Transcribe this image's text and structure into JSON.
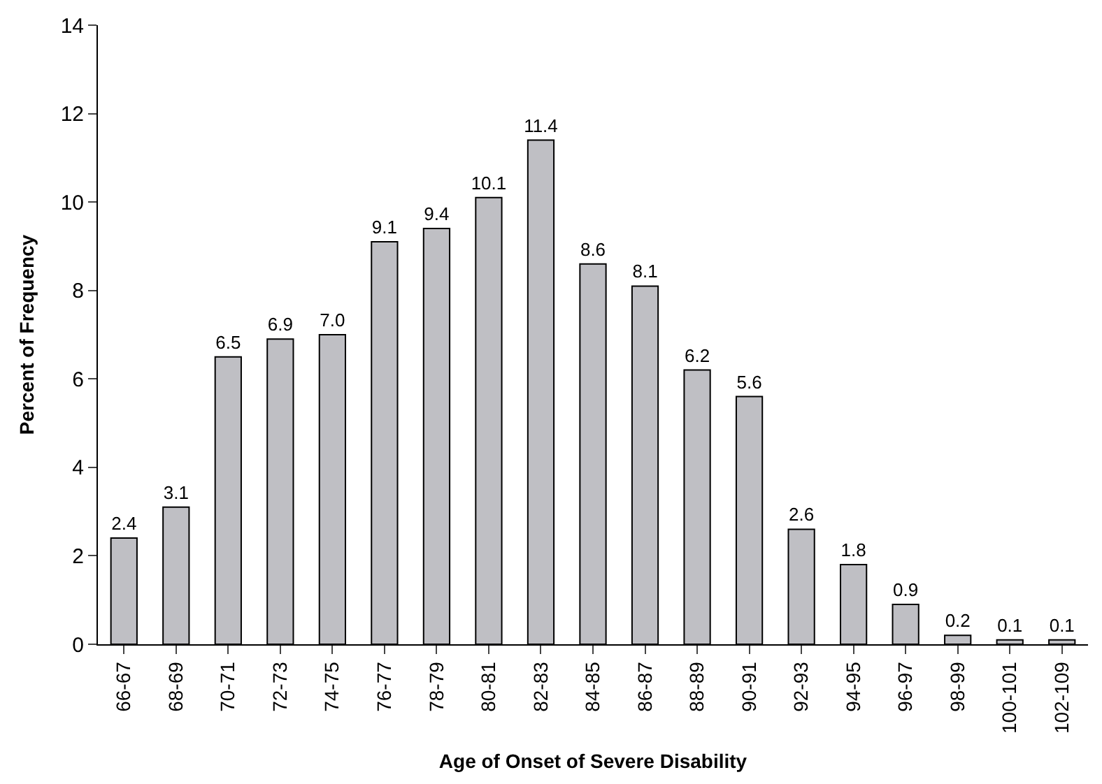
{
  "chart_data": {
    "type": "bar",
    "xlabel": "Age of Onset of Severe Disability",
    "ylabel": "Percent of Frequency",
    "categories": [
      "66-67",
      "68-69",
      "70-71",
      "72-73",
      "74-75",
      "76-77",
      "78-79",
      "80-81",
      "82-83",
      "84-85",
      "86-87",
      "88-89",
      "90-91",
      "92-93",
      "94-95",
      "96-97",
      "98-99",
      "100-101",
      "102-109"
    ],
    "values": [
      2.4,
      3.1,
      6.5,
      6.9,
      7.0,
      9.1,
      9.4,
      10.1,
      11.4,
      8.6,
      8.1,
      6.2,
      5.6,
      2.6,
      1.8,
      0.9,
      0.2,
      0.1,
      0.1
    ],
    "value_labels": [
      "2.4",
      "3.1",
      "6.5",
      "6.9",
      "7.0",
      "9.1",
      "9.4",
      "10.1",
      "11.4",
      "8.6",
      "8.1",
      "6.2",
      "5.6",
      "2.6",
      "1.8",
      "0.9",
      "0.2",
      "0.1",
      "0.1"
    ],
    "color": "#bfbfc4",
    "ylim": [
      0,
      14
    ],
    "yticks": [
      0,
      2,
      4,
      6,
      8,
      10,
      12,
      14
    ],
    "grid": false,
    "legend": false
  }
}
